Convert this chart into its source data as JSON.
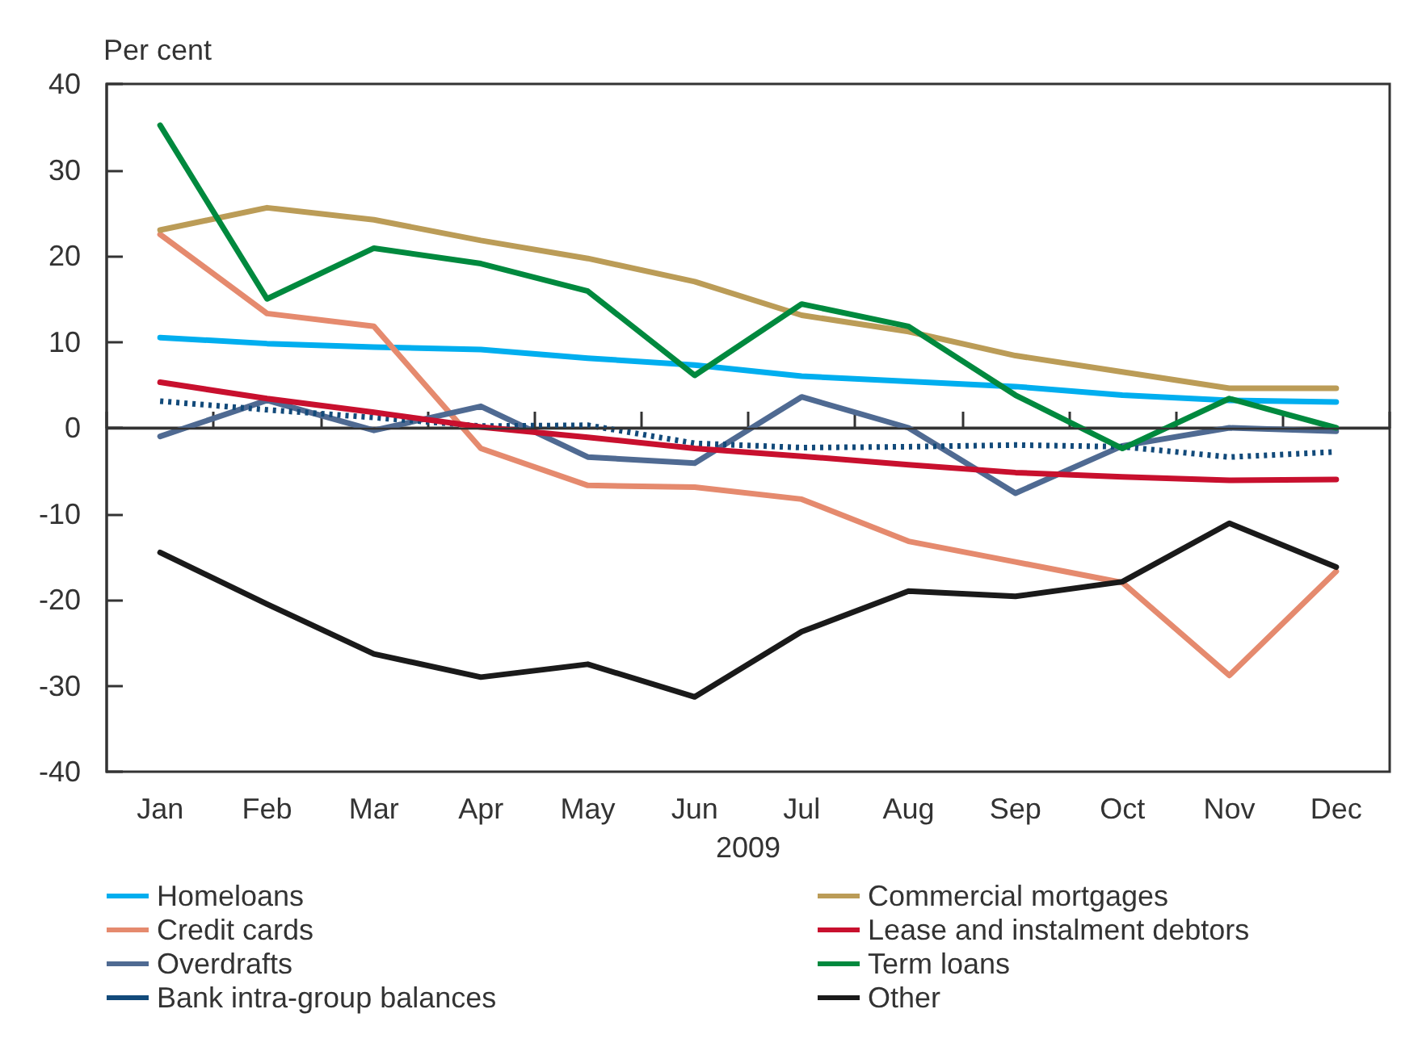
{
  "chart_data": {
    "type": "line",
    "ylabel": "Per cent",
    "xlabel": "2009",
    "categories": [
      "Jan",
      "Feb",
      "Mar",
      "Apr",
      "May",
      "Jun",
      "Jul",
      "Aug",
      "Sep",
      "Oct",
      "Nov",
      "Dec"
    ],
    "series": [
      {
        "name": "Homeloans",
        "color": "#00aeef",
        "values": [
          10.5,
          9.8,
          9.4,
          9.1,
          8.1,
          7.3,
          6.0,
          5.4,
          4.8,
          3.8,
          3.2,
          3.0
        ]
      },
      {
        "name": "Credit cards",
        "color": "#e58a6e",
        "values": [
          22.5,
          13.3,
          11.8,
          -2.4,
          -6.7,
          -6.9,
          -8.3,
          -13.2,
          -15.6,
          -18.0,
          -28.8,
          -16.7
        ]
      },
      {
        "name": "Overdrafts",
        "color": "#4f6a92",
        "values": [
          -1.0,
          3.2,
          -0.3,
          2.5,
          -3.4,
          -4.1,
          3.6,
          0.0,
          -7.6,
          -2.1,
          0.0,
          -0.4
        ]
      },
      {
        "name": "Bank intra-group balances",
        "color": "#124a7a",
        "line_style": "dotted",
        "values": [
          3.1,
          2.1,
          1.2,
          0.2,
          0.3,
          -1.8,
          -2.3,
          -2.2,
          -2.0,
          -2.2,
          -3.4,
          -2.8
        ]
      },
      {
        "name": "Commercial mortgages",
        "color": "#bb9c57",
        "values": [
          23.0,
          25.6,
          24.2,
          21.8,
          19.7,
          17.0,
          13.1,
          11.2,
          8.4,
          6.5,
          4.6,
          4.6
        ]
      },
      {
        "name": "Lease and instalment debtors",
        "color": "#c8102e",
        "values": [
          5.3,
          3.4,
          1.8,
          0.1,
          -1.1,
          -2.4,
          -3.3,
          -4.3,
          -5.2,
          -5.7,
          -6.1,
          -6.0
        ]
      },
      {
        "name": "Term loans",
        "color": "#00893e",
        "values": [
          35.2,
          15.0,
          20.9,
          19.1,
          15.9,
          6.1,
          14.4,
          11.8,
          3.8,
          -2.4,
          3.4,
          0.0
        ]
      },
      {
        "name": "Other",
        "color": "#1a1a1a",
        "values": [
          -14.5,
          -20.5,
          -26.3,
          -29.0,
          -27.5,
          -31.3,
          -23.7,
          -19.0,
          -19.6,
          -17.9,
          -11.1,
          -16.2
        ]
      }
    ],
    "ylim": [
      -40,
      40
    ],
    "yticks": [
      -40,
      -30,
      -20,
      -10,
      0,
      10,
      20,
      30,
      40
    ],
    "ref_lines": [
      {
        "axis": "y",
        "value": 0,
        "color": "#333333"
      }
    ],
    "grid": false,
    "legend": "bottom",
    "marker": "none",
    "line_style": "solid"
  }
}
